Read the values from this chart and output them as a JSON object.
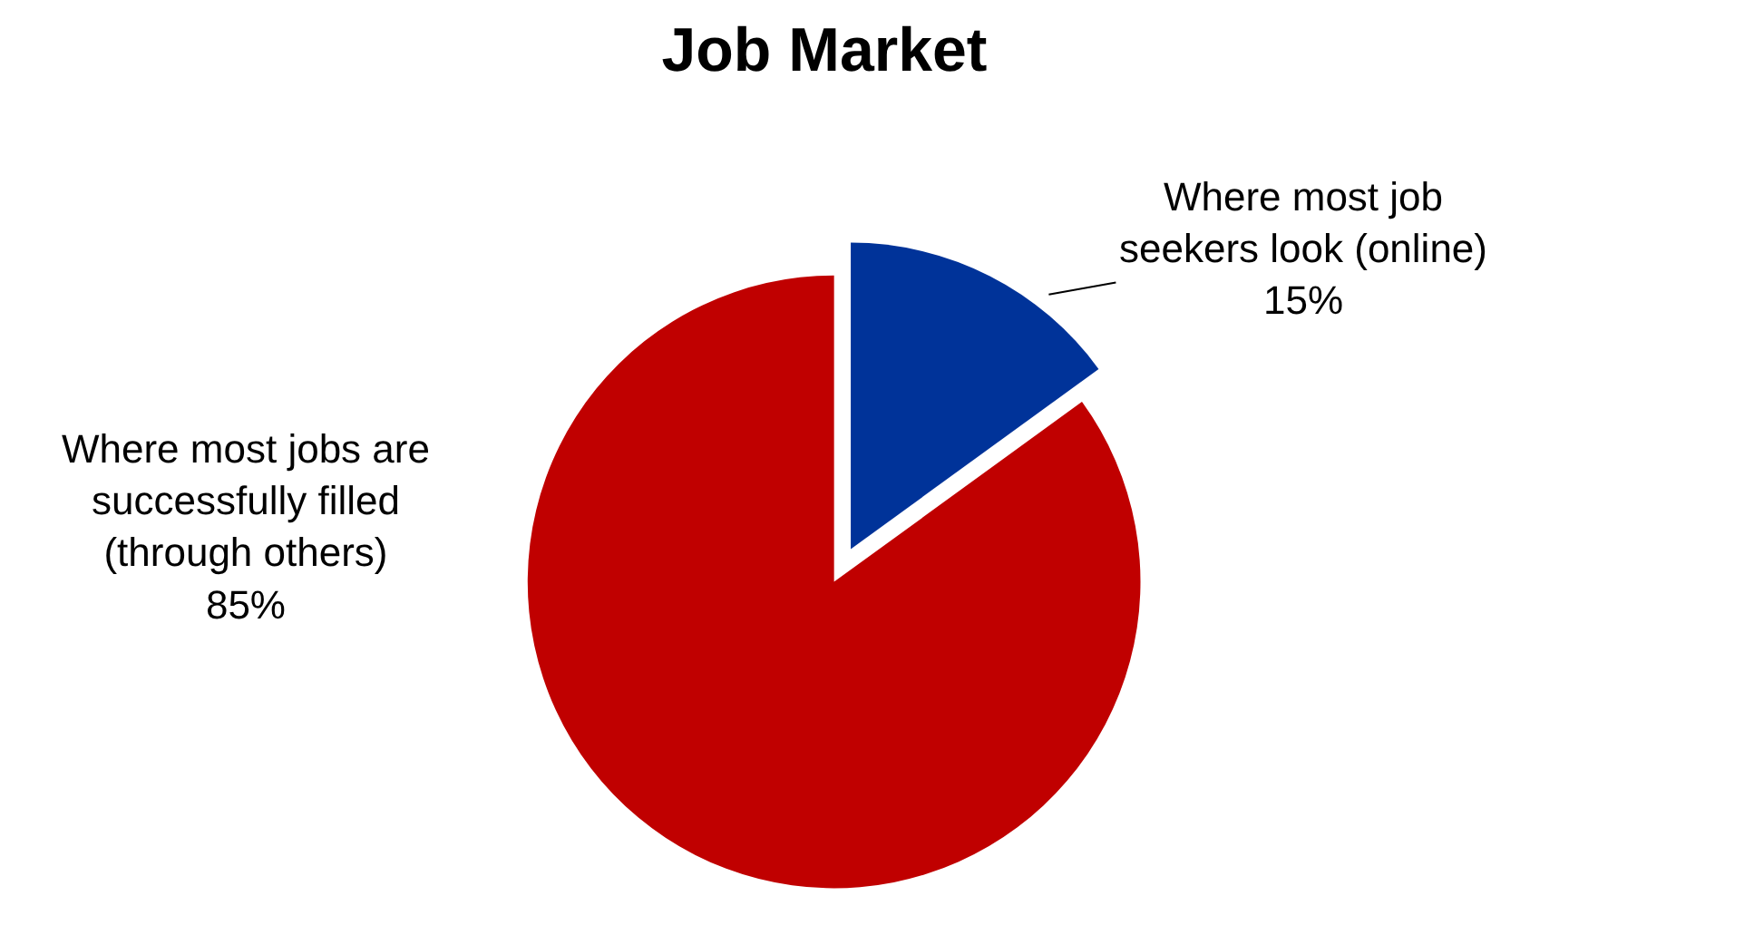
{
  "chart_data": {
    "type": "pie",
    "title": "Job Market",
    "categories": [
      "Where most job seekers look (online)",
      "Where most jobs are successfully filled (through others)"
    ],
    "values": [
      15,
      85
    ],
    "value_labels": [
      "15%",
      "85%"
    ],
    "colors": [
      "#003399",
      "#c00000"
    ],
    "legend": false
  }
}
